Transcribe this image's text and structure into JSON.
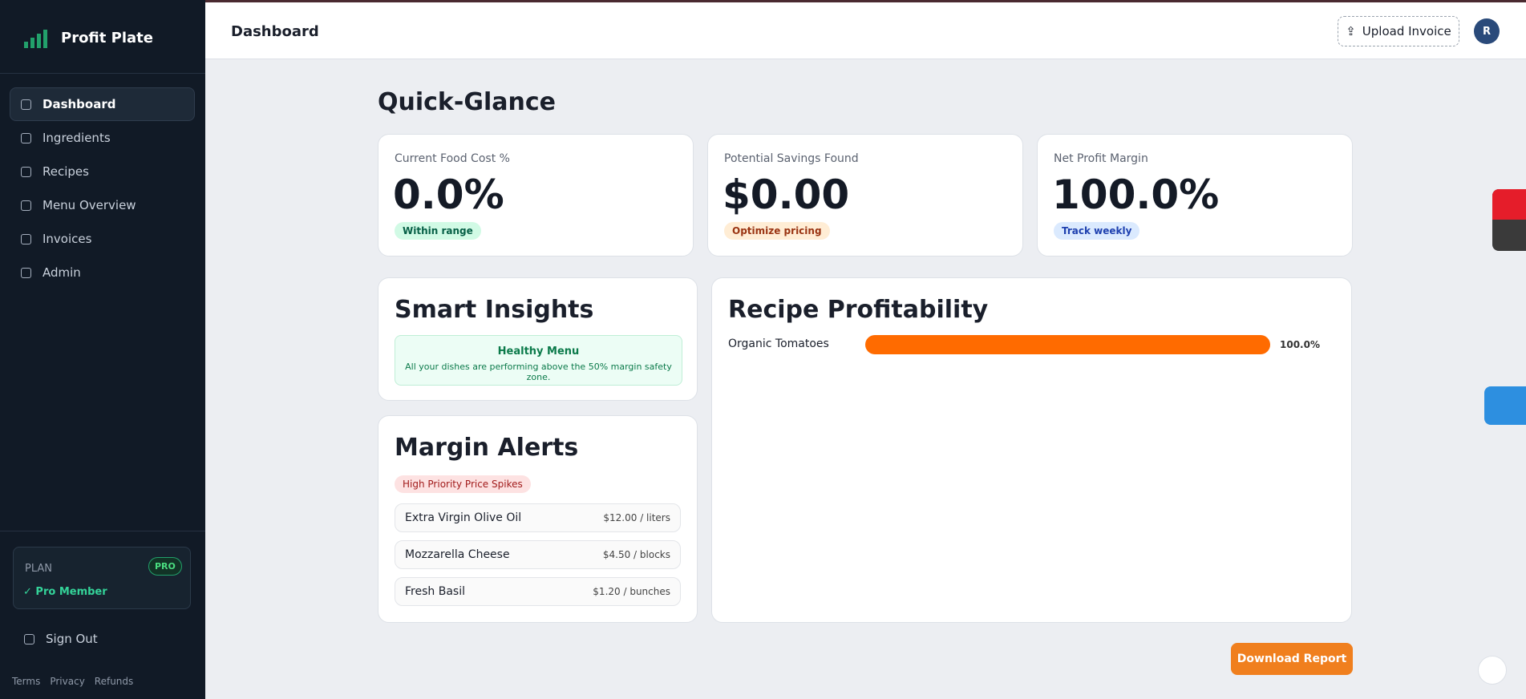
{
  "sidebar": {
    "brand": "Profit Plate",
    "nav": [
      "Dashboard",
      "Ingredients",
      "Recipes",
      "Menu Overview",
      "Invoices",
      "Admin"
    ],
    "plan": {
      "label": "PLAN",
      "badge": "PRO",
      "status": "✓ Pro Member"
    },
    "sign_out": "Sign Out",
    "footer": [
      "Terms",
      "Privacy",
      "Refunds"
    ]
  },
  "header": {
    "title": "Dashboard",
    "upload": "Upload Invoice",
    "avatar": "R"
  },
  "page": {
    "title": "Quick-Glance",
    "stats": [
      {
        "label": "Current Food Cost %",
        "value": "0.0%",
        "badge": "Within range"
      },
      {
        "label": "Potential Savings Found",
        "value": "$0.00",
        "badge": "Optimize pricing"
      },
      {
        "label": "Net Profit Margin",
        "value": "100.0%",
        "badge": "Track weekly"
      }
    ],
    "insights": {
      "title": "Smart Insights",
      "box_title": "Healthy Menu",
      "box_text": "All your dishes are performing above the 50% margin safety zone."
    },
    "alerts": {
      "title": "Margin Alerts",
      "badge": "High Priority Price Spikes",
      "items": [
        {
          "name": "Extra Virgin Olive Oil",
          "price": "$12.00 / liters"
        },
        {
          "name": "Mozzarella Cheese",
          "price": "$4.50 / blocks"
        },
        {
          "name": "Fresh Basil",
          "price": "$1.20 / bunches"
        }
      ]
    },
    "profitability": {
      "title": "Recipe Profitability",
      "items": [
        {
          "name": "Organic Tomatoes",
          "value": 100,
          "value_label": "100.0%"
        }
      ]
    },
    "download": "Download Report"
  }
}
